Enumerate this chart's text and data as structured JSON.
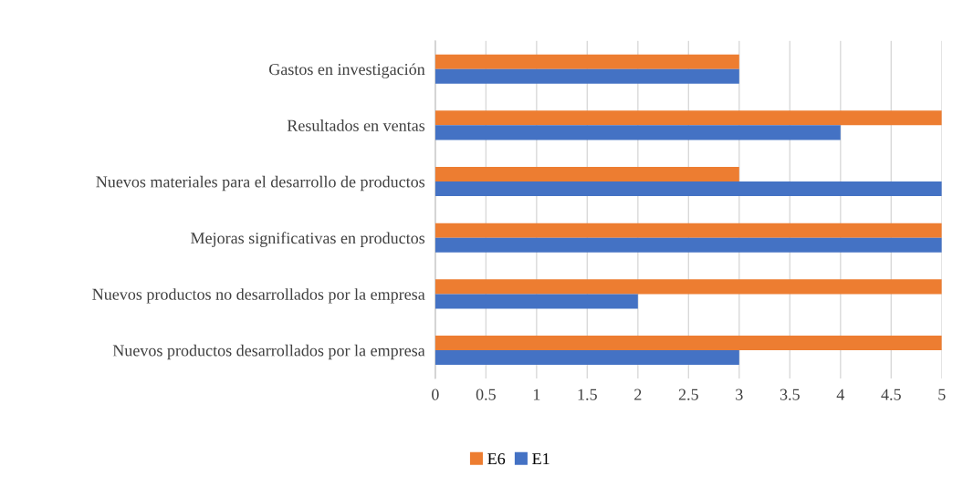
{
  "chart_data": {
    "type": "bar",
    "orientation": "horizontal",
    "categories": [
      "Gastos en investigación",
      "Resultados en ventas",
      "Nuevos materiales para el desarrollo de productos",
      "Mejoras significativas en productos",
      "Nuevos productos no desarrollados por la empresa",
      "Nuevos productos desarrollados por la empresa"
    ],
    "series": [
      {
        "name": "E6",
        "color": "#ed7d31",
        "values": [
          3,
          5,
          3,
          5,
          5,
          5
        ]
      },
      {
        "name": "E1",
        "color": "#4472c4",
        "values": [
          3,
          4,
          5,
          5,
          2,
          3
        ]
      }
    ],
    "xlim": [
      0,
      5
    ],
    "xticks": [
      0,
      0.5,
      1,
      1.5,
      2,
      2.5,
      3,
      3.5,
      4,
      4.5,
      5
    ],
    "grid": "x",
    "legend": "bottom"
  }
}
